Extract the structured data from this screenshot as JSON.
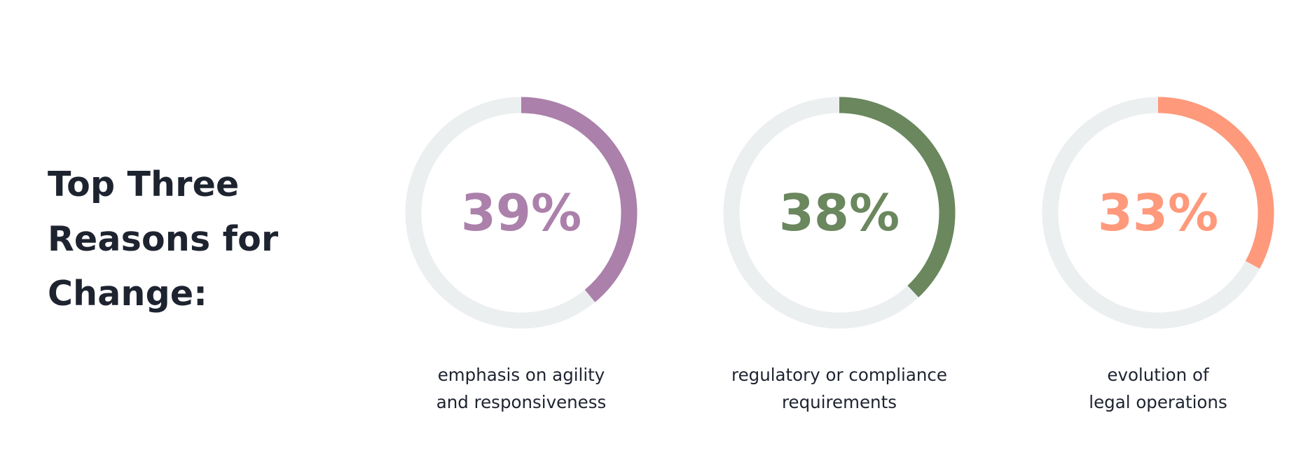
{
  "headline": {
    "lines": [
      "Top Three",
      "Reasons for",
      "Change:"
    ]
  },
  "colors": {
    "track": "#eceff0",
    "purple": "#ab80ab",
    "green": "#6a875d",
    "orange": "#fe997b",
    "text": "#1e2330"
  },
  "chart_data": {
    "type": "donut",
    "title": "Top Three Reasons for Change:",
    "items": [
      {
        "value": 39,
        "label": "39%",
        "caption_lines": [
          "emphasis on agility",
          "and responsiveness"
        ],
        "color": "#ab80ab"
      },
      {
        "value": 38,
        "label": "38%",
        "caption_lines": [
          "regulatory or compliance",
          "requirements"
        ],
        "color": "#6a875d"
      },
      {
        "value": 33,
        "label": "33%",
        "caption_lines": [
          "evolution of",
          "legal operations"
        ],
        "color": "#fe997b"
      }
    ]
  }
}
